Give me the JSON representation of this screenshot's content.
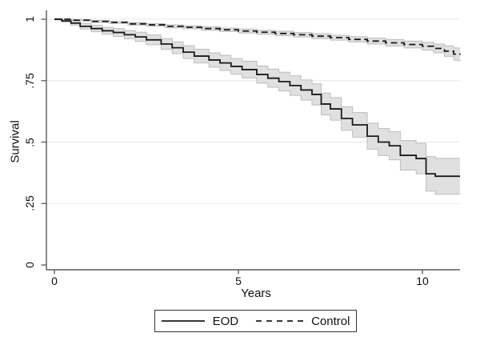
{
  "colors": {
    "background": "#ffffff",
    "grid": "#e7e7e7",
    "axis": "#5a5a5a",
    "text": "#111111",
    "legend_border": "#333333"
  },
  "chart_data": {
    "type": "line",
    "subtype": "kaplan-meier-step-with-confidence-bands",
    "title": "",
    "xlabel": "Years",
    "ylabel": "Survival",
    "xlim": [
      0,
      11.05
    ],
    "ylim": [
      0,
      1
    ],
    "grid": "horizontal",
    "x_ticks": [
      {
        "value": 0,
        "label": "0"
      },
      {
        "value": 5,
        "label": "5"
      },
      {
        "value": 10,
        "label": "10"
      }
    ],
    "y_ticks": [
      {
        "value": 0,
        "label": "0"
      },
      {
        "value": 0.25,
        "label": ".25"
      },
      {
        "value": 0.5,
        "label": ".5"
      },
      {
        "value": 0.75,
        "label": ".75"
      },
      {
        "value": 1,
        "label": "1"
      }
    ],
    "legend": {
      "position": "bottom-center",
      "entries": [
        {
          "label": "EOD",
          "line": "solid"
        },
        {
          "label": "Control",
          "line": "dashed"
        }
      ]
    },
    "series": [
      {
        "name": "Control",
        "line_style": "dashed",
        "color": "#1a1a1a",
        "ci_fill": "#e0e0e0",
        "ci_edge": "#bdbdbd",
        "x": [
          0,
          0.5,
          1.0,
          1.5,
          2.0,
          2.5,
          3.0,
          3.5,
          4.0,
          4.5,
          5.0,
          5.5,
          6.0,
          6.5,
          7.0,
          7.5,
          8.0,
          8.5,
          9.0,
          9.5,
          10.0,
          10.3,
          10.6,
          10.85,
          11.05
        ],
        "survival": [
          1.0,
          0.996,
          0.991,
          0.987,
          0.981,
          0.977,
          0.971,
          0.967,
          0.962,
          0.957,
          0.952,
          0.947,
          0.942,
          0.937,
          0.931,
          0.925,
          0.918,
          0.911,
          0.904,
          0.897,
          0.89,
          0.881,
          0.87,
          0.858,
          0.855
        ],
        "ci_lower": [
          0.998,
          0.993,
          0.987,
          0.983,
          0.976,
          0.972,
          0.965,
          0.961,
          0.955,
          0.95,
          0.944,
          0.939,
          0.933,
          0.928,
          0.921,
          0.915,
          0.907,
          0.899,
          0.891,
          0.883,
          0.874,
          0.863,
          0.849,
          0.833,
          0.828
        ],
        "ci_upper": [
          1.0,
          0.999,
          0.995,
          0.991,
          0.986,
          0.982,
          0.977,
          0.973,
          0.969,
          0.964,
          0.96,
          0.955,
          0.951,
          0.946,
          0.941,
          0.935,
          0.929,
          0.923,
          0.917,
          0.911,
          0.906,
          0.899,
          0.891,
          0.883,
          0.882
        ]
      },
      {
        "name": "EOD",
        "line_style": "solid",
        "color": "#1a1a1a",
        "ci_fill": "#e0e0e0",
        "ci_edge": "#bdbdbd",
        "x": [
          0,
          0.2,
          0.45,
          0.7,
          1.0,
          1.3,
          1.6,
          1.9,
          2.2,
          2.5,
          2.9,
          3.2,
          3.5,
          3.8,
          4.2,
          4.5,
          4.8,
          5.1,
          5.5,
          5.8,
          6.1,
          6.4,
          6.7,
          7.0,
          7.25,
          7.5,
          7.8,
          8.1,
          8.5,
          8.8,
          9.1,
          9.4,
          9.83,
          10.1,
          10.35,
          11.05
        ],
        "survival": [
          1.0,
          0.993,
          0.984,
          0.971,
          0.962,
          0.953,
          0.946,
          0.937,
          0.928,
          0.916,
          0.899,
          0.884,
          0.866,
          0.85,
          0.834,
          0.822,
          0.808,
          0.795,
          0.775,
          0.76,
          0.746,
          0.73,
          0.712,
          0.694,
          0.655,
          0.635,
          0.596,
          0.57,
          0.524,
          0.5,
          0.485,
          0.446,
          0.433,
          0.371,
          0.361,
          0.361
        ],
        "ci_lower": [
          0.997,
          0.988,
          0.976,
          0.96,
          0.949,
          0.939,
          0.93,
          0.92,
          0.909,
          0.896,
          0.877,
          0.86,
          0.84,
          0.822,
          0.805,
          0.791,
          0.776,
          0.761,
          0.74,
          0.723,
          0.708,
          0.69,
          0.671,
          0.651,
          0.611,
          0.589,
          0.548,
          0.52,
          0.471,
          0.445,
          0.428,
          0.386,
          0.371,
          0.301,
          0.288,
          0.288
        ],
        "ci_upper": [
          1.0,
          0.998,
          0.992,
          0.982,
          0.975,
          0.967,
          0.962,
          0.954,
          0.947,
          0.936,
          0.921,
          0.908,
          0.892,
          0.878,
          0.863,
          0.853,
          0.84,
          0.829,
          0.81,
          0.797,
          0.784,
          0.77,
          0.753,
          0.737,
          0.699,
          0.681,
          0.644,
          0.62,
          0.577,
          0.555,
          0.542,
          0.506,
          0.495,
          0.441,
          0.434,
          0.434
        ]
      }
    ]
  }
}
